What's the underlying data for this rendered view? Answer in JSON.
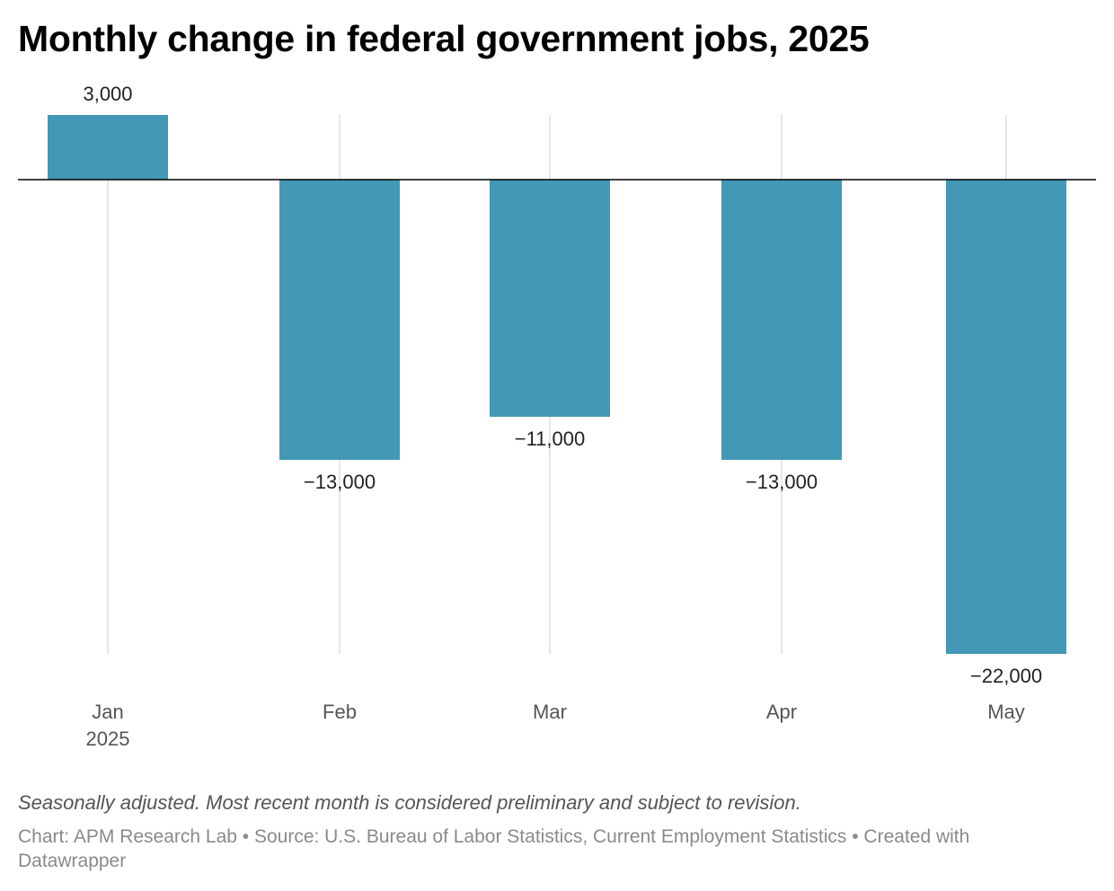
{
  "title": "Monthly change in federal government jobs, 2025",
  "colors": {
    "bar": "#4298b5",
    "grid": "#dddddd",
    "baseline": "#000000",
    "label": "#222222",
    "tick": "#555555"
  },
  "chart_data": {
    "type": "bar",
    "categories": [
      "Jan",
      "Feb",
      "Mar",
      "Apr",
      "May"
    ],
    "category_sublabels": [
      "2025",
      "",
      "",
      "",
      ""
    ],
    "values": [
      3000,
      -13000,
      -11000,
      -13000,
      -22000
    ],
    "data_labels": [
      "3,000",
      "−13,000",
      "−11,000",
      "−13,000",
      "−22,000"
    ],
    "title": "Monthly change in federal government jobs, 2025",
    "xlabel": "",
    "ylabel": "",
    "ylim": [
      -22000,
      3000
    ],
    "grid": "vertical"
  },
  "notes": "Seasonally adjusted. Most recent month is considered preliminary and subject to revision.",
  "byline": "Chart: APM Research Lab • Source: U.S. Bureau of Labor Statistics, Current Employment Statistics • Created with Datawrapper"
}
